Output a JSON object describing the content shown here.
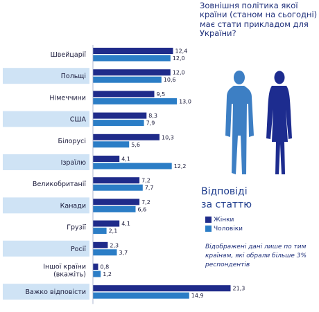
{
  "chart_data": {
    "type": "bar",
    "orientation": "horizontal",
    "categories": [
      "Швейцарії",
      "Польщі",
      "Німеччини",
      "США",
      "Білорусі",
      "Ізраїлю",
      "Великобританії",
      "Канади",
      "Грузії",
      "Росії",
      "Іншої країни\n(вкажіть)",
      "Важко відповісти"
    ],
    "series": [
      {
        "name": "Жінки",
        "color": "#1f2b8a",
        "values": [
          12.4,
          12.0,
          9.5,
          8.3,
          10.3,
          4.1,
          7.2,
          7.2,
          4.1,
          2.3,
          0.8,
          21.3
        ],
        "labels": [
          "12,4",
          "12,0",
          "9,5",
          "8,3",
          "10,3",
          "4,1",
          "7,2",
          "7,2",
          "4,1",
          "2,3",
          "0,8",
          "21,3"
        ]
      },
      {
        "name": "Чоловіки",
        "color": "#2b7dc6",
        "values": [
          12.0,
          10.6,
          13.0,
          7.9,
          5.6,
          12.2,
          7.7,
          6.6,
          2.1,
          3.7,
          1.2,
          14.9
        ],
        "labels": [
          "12,0",
          "10,6",
          "13,0",
          "7,9",
          "5,6",
          "12,2",
          "7,7",
          "6,6",
          "2,1",
          "3,7",
          "1,2",
          "14,9"
        ]
      }
    ],
    "shaded_rows": [
      1,
      3,
      5,
      7,
      9,
      11
    ],
    "xlim": [
      0,
      22
    ],
    "legend_position": "right",
    "grid": false
  },
  "question": "Зовнішня політика якої країни (станом на сьогодні) має стати прикладом для України?",
  "answers_title_line1": "Відповіді",
  "answers_title_line2": "за статтю",
  "legend": {
    "women": "Жінки",
    "men": "Чоловіки"
  },
  "footnote": "Відображені дані лише по тим країнам, які обрали більше 3% респондентів",
  "colors": {
    "women": "#1f2b8a",
    "men": "#2b7dc6",
    "label_box": "#cfe3f5",
    "man_figure": "#3d7fc4",
    "woman_figure": "#1d2c8f"
  }
}
